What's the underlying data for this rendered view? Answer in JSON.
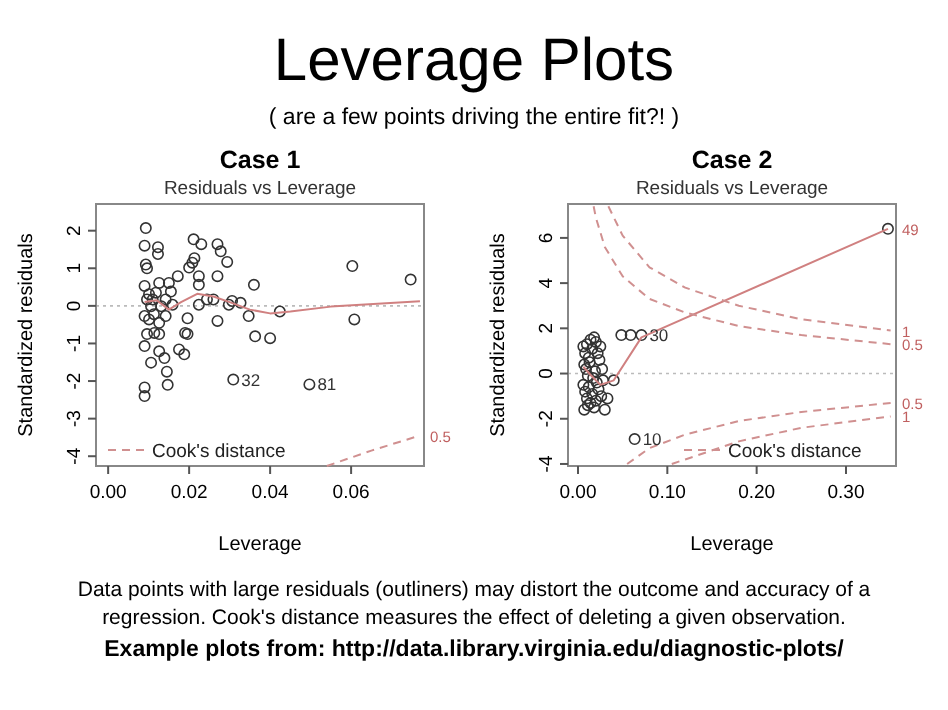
{
  "chart_data": [
    {
      "type": "other",
      "title": "Leverage Plots",
      "subtitle": "( are a few points driving the entire fit?! )"
    },
    {
      "type": "scatter",
      "title": "Case 1",
      "subtitle": "Residuals vs Leverage",
      "xlabel": "Leverage",
      "ylabel": "Standardized residuals",
      "xlim": [
        -0.003,
        0.078
      ],
      "ylim": [
        -4.26,
        2.71
      ],
      "xticks": [
        {
          "value": 0,
          "label": "0.00"
        },
        {
          "value": 0.02,
          "label": "0.02"
        },
        {
          "value": 0.04,
          "label": "0.04"
        },
        {
          "value": 0.06,
          "label": "0.06"
        }
      ],
      "yticks": [
        -4,
        -3,
        -2,
        -1,
        0,
        1,
        2
      ],
      "marker": "circle",
      "legend": "bottom left",
      "ref_lines": [
        {
          "axis": "y",
          "value": 0,
          "color": "#bbbbbb",
          "line_style": "dotted"
        }
      ],
      "annotations": [
        {
          "text": "32",
          "x": 0.0309,
          "y": -1.96
        },
        {
          "text": "81",
          "x": 0.0497,
          "y": -2.09
        },
        {
          "text": "0.5",
          "x": 0.077,
          "y": -3.45
        }
      ],
      "series": [
        {
          "color": "#333333",
          "x": [
            0.0093,
            0.009,
            0.0123,
            0.0123,
            0.0093,
            0.0096,
            0.0211,
            0.023,
            0.027,
            0.0278,
            0.0294,
            0.0208,
            0.0213,
            0.02,
            0.0224,
            0.027,
            0.0172,
            0.015,
            0.0126,
            0.009,
            0.0101,
            0.011,
            0.0131,
            0.0142,
            0.0159,
            0.0224,
            0.0244,
            0.026,
            0.0224,
            0.0306,
            0.0298,
            0.0327,
            0.036,
            0.0347,
            0.0424,
            0.0603,
            0.0747,
            0.0608,
            0.027,
            0.0363,
            0.04,
            0.0196,
            0.019,
            0.0196,
            0.0175,
            0.0188,
            0.0126,
            0.0139,
            0.0145,
            0.0147,
            0.0106,
            0.009,
            0.009,
            0.009,
            0.0309,
            0.0497,
            0.009,
            0.0101,
            0.0113,
            0.0126,
            0.0114,
            0.0126,
            0.0096,
            0.0142,
            0.0106,
            0.0096,
            0.0118,
            0.0155
          ],
          "values": [
            2.07,
            1.6,
            1.56,
            1.38,
            1.1,
            1.0,
            1.77,
            1.64,
            1.64,
            1.45,
            1.17,
            1.15,
            1.27,
            1.02,
            0.79,
            0.79,
            0.79,
            0.61,
            0.61,
            0.53,
            0.31,
            0.17,
            -0.01,
            0.17,
            0.03,
            0.56,
            0.17,
            0.17,
            0.03,
            0.13,
            0.03,
            0.08,
            0.56,
            -0.27,
            -0.15,
            1.06,
            0.7,
            -0.36,
            -0.4,
            -0.81,
            -0.86,
            -0.33,
            -0.72,
            -0.75,
            -1.16,
            -1.29,
            -1.21,
            -1.39,
            -1.75,
            -2.1,
            -1.51,
            -1.07,
            -2.17,
            -2.4,
            -1.96,
            -2.09,
            -0.27,
            -0.36,
            -0.22,
            -0.45,
            -0.72,
            -0.75,
            -0.75,
            -0.27,
            -0.01,
            0.17,
            0.35,
            0.38
          ]
        },
        {
          "type": "line",
          "marker": "none",
          "color": "#d08080",
          "x": [
            0.009,
            0.012,
            0.015,
            0.018,
            0.022,
            0.026,
            0.03,
            0.035,
            0.04,
            0.045,
            0.055,
            0.077
          ],
          "values": [
            0.1,
            0.15,
            -0.1,
            0.1,
            0.32,
            0.25,
            0.1,
            -0.1,
            -0.2,
            -0.15,
            -0.02,
            0.12
          ]
        },
        {
          "type": "line",
          "marker": "none",
          "name": "Cook's distance",
          "line_style": "dashed",
          "color": "#d09090",
          "x": [
            0.054,
            0.065,
            0.077
          ],
          "values": [
            -4.26,
            -3.85,
            -3.45
          ]
        }
      ]
    },
    {
      "type": "scatter",
      "title": "Case 2",
      "subtitle": "Residuals vs Leverage",
      "xlabel": "Leverage",
      "ylabel": "Standardized residuals",
      "xlim": [
        -0.0112,
        0.356
      ],
      "ylim": [
        -4.09,
        7.5
      ],
      "xticks": [
        {
          "value": 0,
          "label": "0.00"
        },
        {
          "value": 0.1,
          "label": "0.10"
        },
        {
          "value": 0.2,
          "label": "0.20"
        },
        {
          "value": 0.3,
          "label": "0.30"
        }
      ],
      "yticks": [
        -4,
        -2,
        0,
        2,
        4,
        6
      ],
      "marker": "circle",
      "legend": "bottom right",
      "ref_lines": [
        {
          "axis": "y",
          "value": 0,
          "color": "#bbbbbb",
          "line_style": "dotted"
        }
      ],
      "annotations": [
        {
          "text": "49",
          "x": 0.347,
          "y": 6.4
        },
        {
          "text": "30",
          "x": 0.071,
          "y": 1.7
        },
        {
          "text": "10",
          "x": 0.0634,
          "y": -2.9
        },
        {
          "text": "1",
          "x": 0.35,
          "y": 1.9
        },
        {
          "text": "0.5",
          "x": 0.35,
          "y": 1.3
        },
        {
          "text": "0.5",
          "x": 0.35,
          "y": -1.3
        },
        {
          "text": "1",
          "x": 0.35,
          "y": -1.9
        }
      ],
      "series": [
        {
          "color": "#333333",
          "x": [
            0.006,
            0.008,
            0.01,
            0.012,
            0.014,
            0.016,
            0.018,
            0.02,
            0.022,
            0.025,
            0.007,
            0.009,
            0.011,
            0.013,
            0.017,
            0.019,
            0.021,
            0.024,
            0.027,
            0.006,
            0.008,
            0.01,
            0.012,
            0.014,
            0.016,
            0.018,
            0.02,
            0.023,
            0.026,
            0.03,
            0.033,
            0.028,
            0.007,
            0.011,
            0.347,
            0.0485,
            0.059,
            0.071,
            0.04,
            0.0634
          ],
          "values": [
            1.2,
            0.9,
            1.3,
            0.7,
            1.5,
            1.1,
            1.6,
            1.4,
            0.9,
            1.2,
            0.4,
            0.2,
            -0.1,
            0.5,
            -0.2,
            0.1,
            -0.4,
            0.6,
            0.2,
            -0.5,
            -0.8,
            -1.1,
            -0.6,
            -1.3,
            -0.9,
            -1.5,
            -1.2,
            -0.7,
            -1.0,
            -1.6,
            -1.1,
            -0.3,
            -1.6,
            -1.4,
            6.4,
            1.7,
            1.7,
            1.7,
            -0.3,
            -2.9
          ]
        },
        {
          "type": "line",
          "marker": "none",
          "color": "#d08080",
          "x": [
            0.006,
            0.015,
            0.025,
            0.04,
            0.071,
            0.347
          ],
          "values": [
            0.3,
            -0.1,
            -0.5,
            -0.3,
            1.6,
            6.4
          ]
        },
        {
          "type": "line",
          "marker": "none",
          "name": "Cook's distance",
          "line_style": "dashed",
          "color": "#d09090",
          "x": [
            0.0175,
            0.02,
            0.03,
            0.05,
            0.08,
            0.12,
            0.18,
            0.25,
            0.35,
            null,
            0.034,
            0.05,
            0.08,
            0.12,
            0.18,
            0.25,
            0.35,
            null,
            0.055,
            0.08,
            0.12,
            0.18,
            0.25,
            0.35,
            null,
            0.105,
            0.12,
            0.18,
            0.25,
            0.35
          ],
          "values": [
            7.4,
            6.9,
            5.6,
            4.3,
            3.3,
            2.7,
            2.1,
            1.7,
            1.3,
            null,
            7.4,
            6.1,
            4.7,
            3.8,
            3.0,
            2.4,
            1.9,
            null,
            -4.0,
            -3.3,
            -2.7,
            -2.1,
            -1.7,
            -1.3,
            null,
            -4.0,
            -3.8,
            -3.0,
            -2.4,
            -1.9
          ]
        }
      ]
    },
    {
      "type": "other",
      "annotations": [
        "Data points with large residuals (outliners) may distort the outcome and accuracy of a regression. Cook's distance measures the effect of deleting a given observation.",
        "Example plots from: http://data.library.virginia.edu/diagnostic-plots/"
      ]
    }
  ]
}
